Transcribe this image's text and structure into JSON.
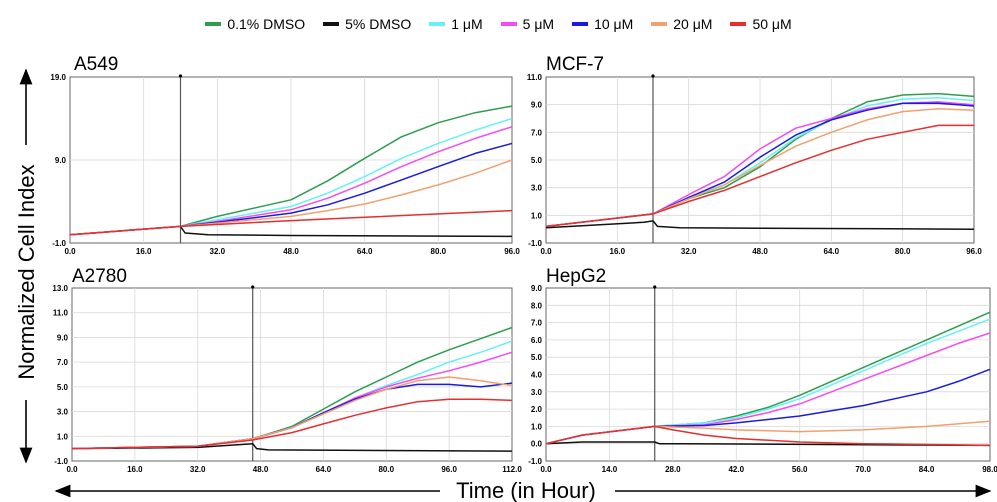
{
  "chart_data": {
    "type": "line",
    "xlabel": "Time (in Hour)",
    "ylabel": "Normalized Cell Index",
    "legend": [
      {
        "name": "0.1% DMSO",
        "color": "#2e9d50"
      },
      {
        "name": "5% DMSO",
        "color": "#111111"
      },
      {
        "name": "1 μM",
        "color": "#66f2f2"
      },
      {
        "name": "5 μM",
        "color": "#f24cf2"
      },
      {
        "name": "10 μM",
        "color": "#1a1ae6"
      },
      {
        "name": "20 μM",
        "color": "#f2a070"
      },
      {
        "name": "50 μM",
        "color": "#e62e2e"
      }
    ],
    "panels": [
      {
        "title": "A549",
        "xlim": [
          0,
          96
        ],
        "ylim": [
          -1,
          19
        ],
        "xticks": [
          "0.0",
          "16.0",
          "32.0",
          "48.0",
          "64.0",
          "80.0",
          "96.0"
        ],
        "yticks": [
          "-1.0",
          "9.0",
          "19.0"
        ],
        "marker_x": 24,
        "series": [
          {
            "color": "#2e9d50",
            "x": [
              0,
              24,
              32,
              48,
              56,
              64,
              72,
              80,
              88,
              96
            ],
            "y": [
              0,
              1,
              2.2,
              4.2,
              6.5,
              9.2,
              11.8,
              13.5,
              14.7,
              15.5
            ]
          },
          {
            "color": "#111111",
            "x": [
              0,
              24,
              25,
              30,
              48,
              96
            ],
            "y": [
              0,
              1,
              0.2,
              0,
              -0.1,
              -0.2
            ]
          },
          {
            "color": "#66f2f2",
            "x": [
              0,
              24,
              32,
              48,
              56,
              64,
              72,
              80,
              88,
              96
            ],
            "y": [
              0,
              1,
              1.8,
              3.4,
              5,
              7,
              9.2,
              11,
              12.6,
              14
            ]
          },
          {
            "color": "#f24cf2",
            "x": [
              0,
              24,
              32,
              48,
              56,
              64,
              72,
              80,
              88,
              96
            ],
            "y": [
              0,
              1,
              1.6,
              3,
              4.4,
              6.2,
              8.2,
              10,
              11.6,
              13
            ]
          },
          {
            "color": "#1a1ae6",
            "x": [
              0,
              24,
              32,
              48,
              56,
              64,
              72,
              80,
              88,
              96
            ],
            "y": [
              0,
              1,
              1.5,
              2.6,
              3.6,
              5,
              6.6,
              8.2,
              9.8,
              11
            ]
          },
          {
            "color": "#f2a070",
            "x": [
              0,
              24,
              32,
              48,
              56,
              64,
              72,
              80,
              88,
              96
            ],
            "y": [
              0,
              1,
              1.4,
              2.2,
              2.9,
              3.7,
              4.8,
              6,
              7.4,
              9
            ]
          },
          {
            "color": "#e62e2e",
            "x": [
              0,
              24,
              48,
              64,
              80,
              96
            ],
            "y": [
              0,
              1,
              1.7,
              2.1,
              2.5,
              2.9
            ]
          }
        ]
      },
      {
        "title": "MCF-7",
        "xlim": [
          0,
          96
        ],
        "ylim": [
          -1,
          11
        ],
        "xticks": [
          "0.0",
          "16.0",
          "32.0",
          "48.0",
          "64.0",
          "80.0",
          "96.0"
        ],
        "yticks": [
          "-1.0",
          "1.0",
          "3.0",
          "5.0",
          "7.0",
          "9.0",
          "11.0"
        ],
        "marker_x": 24,
        "series": [
          {
            "color": "#2e9d50",
            "x": [
              0,
              24,
              32,
              40,
              48,
              56,
              64,
              72,
              80,
              88,
              96
            ],
            "y": [
              0.2,
              1.1,
              2.2,
              3,
              4.5,
              6.5,
              8,
              9.2,
              9.7,
              9.8,
              9.6
            ]
          },
          {
            "color": "#111111",
            "x": [
              0,
              22,
              24,
              25,
              30,
              96
            ],
            "y": [
              0.1,
              0.5,
              0.6,
              0.2,
              0.1,
              0.0
            ]
          },
          {
            "color": "#66f2f2",
            "x": [
              0,
              24,
              32,
              40,
              48,
              56,
              64,
              72,
              80,
              88,
              96
            ],
            "y": [
              0.2,
              1.1,
              2.3,
              3.2,
              4.8,
              6.6,
              7.9,
              8.9,
              9.4,
              9.5,
              9.3
            ]
          },
          {
            "color": "#f24cf2",
            "x": [
              0,
              24,
              32,
              40,
              48,
              56,
              64,
              72,
              80,
              88,
              96
            ],
            "y": [
              0.2,
              1.1,
              2.5,
              3.8,
              5.8,
              7.3,
              8,
              8.7,
              9.1,
              9.2,
              9
            ]
          },
          {
            "color": "#1a1ae6",
            "x": [
              0,
              24,
              32,
              40,
              48,
              56,
              64,
              72,
              80,
              88,
              96
            ],
            "y": [
              0.2,
              1.1,
              2.3,
              3.4,
              5.2,
              6.8,
              7.9,
              8.6,
              9.1,
              9.1,
              8.9
            ]
          },
          {
            "color": "#f2a070",
            "x": [
              0,
              24,
              32,
              40,
              48,
              56,
              64,
              72,
              80,
              88,
              96
            ],
            "y": [
              0.2,
              1.1,
              2.2,
              3.2,
              4.6,
              6,
              7,
              7.9,
              8.5,
              8.7,
              8.6
            ]
          },
          {
            "color": "#e62e2e",
            "x": [
              0,
              24,
              32,
              40,
              48,
              56,
              64,
              72,
              80,
              88,
              96
            ],
            "y": [
              0.2,
              1.1,
              2,
              2.8,
              3.8,
              4.8,
              5.7,
              6.5,
              7,
              7.5,
              7.5
            ]
          }
        ]
      },
      {
        "title": "A2780",
        "xlim": [
          0,
          112
        ],
        "ylim": [
          -1,
          13
        ],
        "xticks": [
          "0.0",
          "16.0",
          "32.0",
          "48.0",
          "64.0",
          "80.0",
          "96.0",
          "112.0"
        ],
        "yticks": [
          "-1.0",
          "1.0",
          "3.0",
          "5.0",
          "7.0",
          "9.0",
          "11.0",
          "13.0"
        ],
        "marker_x": 46,
        "series": [
          {
            "color": "#2e9d50",
            "x": [
              0,
              32,
              46,
              56,
              64,
              72,
              80,
              88,
              96,
              104,
              112
            ],
            "y": [
              0,
              0.2,
              0.8,
              1.8,
              3.2,
              4.6,
              5.8,
              7,
              8,
              8.9,
              9.8
            ]
          },
          {
            "color": "#111111",
            "x": [
              0,
              32,
              46,
              47,
              50,
              112
            ],
            "y": [
              0,
              0.1,
              0.4,
              0,
              -0.1,
              -0.2
            ]
          },
          {
            "color": "#66f2f2",
            "x": [
              0,
              32,
              46,
              56,
              64,
              72,
              80,
              88,
              96,
              104,
              112
            ],
            "y": [
              0,
              0.2,
              0.8,
              1.7,
              2.9,
              4.1,
              5.1,
              6,
              7,
              7.8,
              8.7
            ]
          },
          {
            "color": "#f24cf2",
            "x": [
              0,
              32,
              46,
              56,
              64,
              72,
              80,
              88,
              96,
              104,
              112
            ],
            "y": [
              0,
              0.2,
              0.8,
              1.7,
              2.9,
              4.1,
              5,
              5.7,
              6.3,
              7,
              7.8
            ]
          },
          {
            "color": "#1a1ae6",
            "x": [
              0,
              32,
              46,
              56,
              64,
              72,
              80,
              88,
              96,
              104,
              112
            ],
            "y": [
              0,
              0.2,
              0.8,
              1.7,
              2.9,
              4,
              4.8,
              5.2,
              5.2,
              5,
              5.3
            ]
          },
          {
            "color": "#f2a070",
            "x": [
              0,
              32,
              46,
              56,
              64,
              72,
              80,
              88,
              96,
              104,
              112
            ],
            "y": [
              0,
              0.2,
              0.8,
              1.7,
              2.8,
              3.9,
              4.8,
              5.5,
              5.8,
              5.5,
              5.1
            ]
          },
          {
            "color": "#e62e2e",
            "x": [
              0,
              32,
              46,
              56,
              64,
              72,
              80,
              88,
              96,
              104,
              112
            ],
            "y": [
              0,
              0.2,
              0.7,
              1.3,
              2,
              2.7,
              3.3,
              3.8,
              4,
              4,
              3.9
            ]
          }
        ]
      },
      {
        "title": "HepG2",
        "xlim": [
          0,
          98
        ],
        "ylim": [
          -1,
          9
        ],
        "xticks": [
          "0.0",
          "14.0",
          "28.0",
          "42.0",
          "56.0",
          "70.0",
          "84.0",
          "98.0"
        ],
        "yticks": [
          "-1.0",
          "0.0",
          "1.0",
          "2.0",
          "3.0",
          "4.0",
          "5.0",
          "6.0",
          "7.0",
          "8.0",
          "9.0"
        ],
        "marker_x": 24,
        "series": [
          {
            "color": "#2e9d50",
            "x": [
              0,
              8,
              24,
              35,
              42,
              49,
              56,
              63,
              70,
              77,
              84,
              91,
              98
            ],
            "y": [
              0,
              0.5,
              1,
              1.2,
              1.6,
              2.1,
              2.8,
              3.6,
              4.4,
              5.2,
              6,
              6.8,
              7.6
            ]
          },
          {
            "color": "#111111",
            "x": [
              0,
              8,
              24,
              25,
              30,
              98
            ],
            "y": [
              0,
              0.1,
              0.1,
              0,
              0,
              -0.1
            ]
          },
          {
            "color": "#66f2f2",
            "x": [
              0,
              8,
              24,
              35,
              42,
              49,
              56,
              63,
              70,
              77,
              84,
              91,
              98
            ],
            "y": [
              0,
              0.5,
              1,
              1.2,
              1.5,
              2,
              2.6,
              3.4,
              4.2,
              5,
              5.8,
              6.5,
              7.2
            ]
          },
          {
            "color": "#f24cf2",
            "x": [
              0,
              8,
              24,
              35,
              42,
              49,
              56,
              63,
              70,
              77,
              84,
              91,
              98
            ],
            "y": [
              0,
              0.5,
              1,
              1.1,
              1.4,
              1.8,
              2.3,
              3,
              3.7,
              4.4,
              5.1,
              5.8,
              6.4
            ]
          },
          {
            "color": "#1a1ae6",
            "x": [
              0,
              8,
              24,
              35,
              42,
              49,
              56,
              63,
              70,
              77,
              84,
              91,
              98
            ],
            "y": [
              0,
              0.5,
              1,
              1.05,
              1.2,
              1.4,
              1.6,
              1.9,
              2.2,
              2.6,
              3,
              3.6,
              4.3
            ]
          },
          {
            "color": "#f2a070",
            "x": [
              0,
              8,
              24,
              35,
              42,
              56,
              70,
              84,
              98
            ],
            "y": [
              0,
              0.5,
              1,
              0.9,
              0.8,
              0.7,
              0.8,
              1,
              1.3
            ]
          },
          {
            "color": "#e62e2e",
            "x": [
              0,
              8,
              24,
              28,
              35,
              42,
              56,
              70,
              98
            ],
            "y": [
              0,
              0.5,
              1,
              0.8,
              0.5,
              0.3,
              0.1,
              0,
              -0.1
            ]
          }
        ]
      }
    ]
  }
}
